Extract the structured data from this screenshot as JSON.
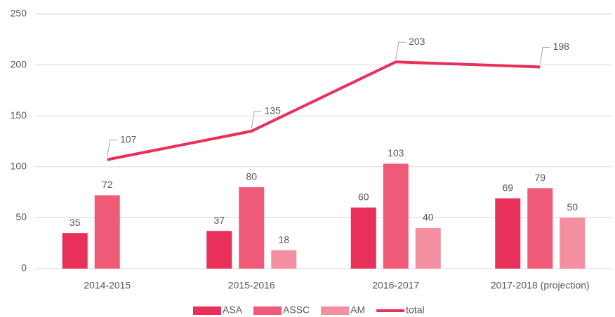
{
  "chart_data": {
    "type": "bar",
    "categories": [
      "2014-2015",
      "2015-2016",
      "2016-2017",
      "2017-2018 (projection)"
    ],
    "series": [
      {
        "name": "ASA",
        "color": "#e8305a",
        "values": [
          35,
          37,
          60,
          69
        ]
      },
      {
        "name": "ASSC",
        "color": "#ef5a78",
        "values": [
          72,
          80,
          103,
          79
        ]
      },
      {
        "name": "AM",
        "color": "#f48fa2",
        "values": [
          null,
          18,
          40,
          50
        ]
      },
      {
        "name": "total",
        "color": "#e8305a",
        "type": "line",
        "values": [
          107,
          135,
          203,
          198
        ]
      }
    ],
    "ylim": [
      0,
      250
    ],
    "yticks": [
      0,
      50,
      100,
      150,
      200,
      250
    ],
    "grid": true,
    "legend": "bottom"
  }
}
